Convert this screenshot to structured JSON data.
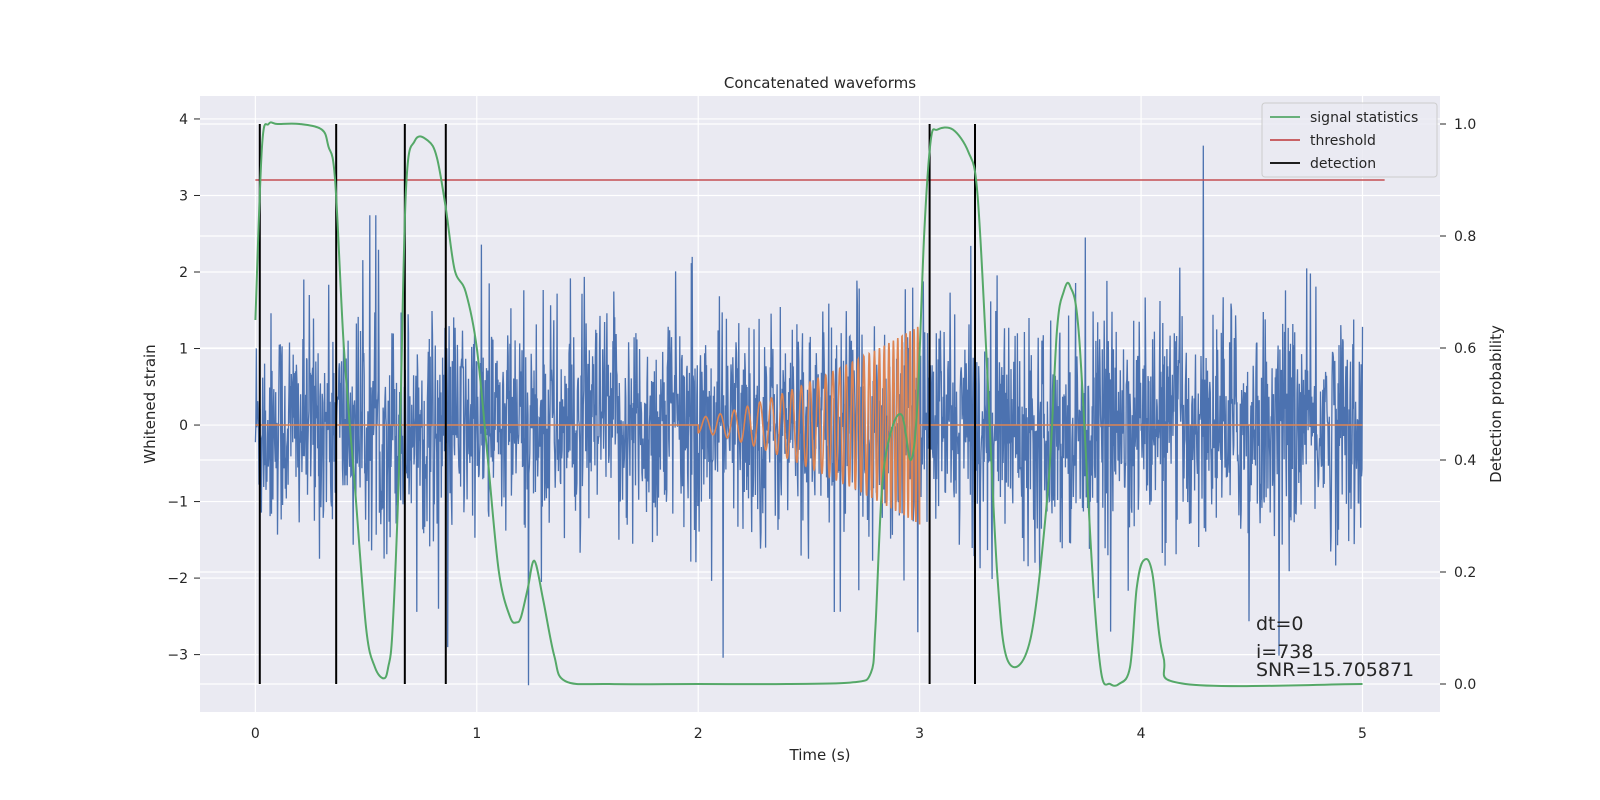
{
  "chart_data": {
    "type": "line",
    "title": "Concatenated waveforms",
    "xlabel": "Time (s)",
    "ylabel": "Whitened strain",
    "y2label": "Detection probability",
    "xlim": [
      -0.25,
      5.35
    ],
    "ylim": [
      -3.75,
      4.3
    ],
    "y2lim": [
      -0.05,
      1.05
    ],
    "xticks": [
      0,
      1,
      2,
      3,
      4,
      5
    ],
    "yticks": [
      -3,
      -2,
      -1,
      0,
      1,
      2,
      3,
      4
    ],
    "y2ticks": [
      0.0,
      0.2,
      0.4,
      0.6,
      0.8,
      1.0
    ],
    "xticklabels": [
      "0",
      "1",
      "2",
      "3",
      "4",
      "5"
    ],
    "yticklabels": [
      "−3",
      "−2",
      "−1",
      "0",
      "1",
      "2",
      "3",
      "4"
    ],
    "y2ticklabels": [
      "0.0",
      "0.2",
      "0.4",
      "0.6",
      "0.8",
      "1.0"
    ],
    "grid": true,
    "legend_position": "top-right",
    "colors": {
      "strain": "#4c72b0",
      "waveform": "#dd8452",
      "signal": "#55a868",
      "threshold": "#c44e52",
      "detection": "#000000",
      "plot_bg": "#eaeaf2",
      "grid": "#ffffff"
    },
    "strain_noise": {
      "x_range": [
        0,
        5
      ],
      "typical_envelope": [
        -1.8,
        1.8
      ],
      "max": 3.95,
      "min": -3.4
    },
    "chirp": {
      "x_range": [
        2.0,
        3.0
      ],
      "amplitude_start": 0.1,
      "amplitude_end": 1.3,
      "freq_start_hz": 15,
      "freq_end_hz": 60
    },
    "series": [
      {
        "name": "signal statistics",
        "axis": "right",
        "x": [
          0,
          0.03,
          0.06,
          0.1,
          0.2,
          0.3,
          0.33,
          0.36,
          0.4,
          0.45,
          0.5,
          0.54,
          0.58,
          0.6,
          0.62,
          0.65,
          0.68,
          0.72,
          0.78,
          0.82,
          0.86,
          0.9,
          0.95,
          1.0,
          1.05,
          1.1,
          1.15,
          1.18,
          1.2,
          1.23,
          1.26,
          1.3,
          1.35,
          1.4,
          1.6,
          2.0,
          2.4,
          2.7,
          2.78,
          2.8,
          2.83,
          2.87,
          2.92,
          2.96,
          2.99,
          3.02,
          3.05,
          3.08,
          3.15,
          3.22,
          3.26,
          3.3,
          3.35,
          3.4,
          3.5,
          3.58,
          3.62,
          3.65,
          3.68,
          3.72,
          3.78,
          3.82,
          3.86,
          3.9,
          3.95,
          3.98,
          4.01,
          4.05,
          4.1,
          4.2,
          5.0
        ],
        "y": [
          0.65,
          0.96,
          1.0,
          1.0,
          1.0,
          0.99,
          0.96,
          0.9,
          0.6,
          0.35,
          0.1,
          0.03,
          0.01,
          0.03,
          0.1,
          0.4,
          0.88,
          0.97,
          0.97,
          0.94,
          0.85,
          0.74,
          0.7,
          0.6,
          0.4,
          0.2,
          0.12,
          0.11,
          0.12,
          0.17,
          0.22,
          0.15,
          0.05,
          0.005,
          0.0,
          0.0,
          0.0,
          0.003,
          0.02,
          0.1,
          0.35,
          0.45,
          0.48,
          0.4,
          0.5,
          0.8,
          0.97,
          0.99,
          0.99,
          0.95,
          0.88,
          0.6,
          0.2,
          0.04,
          0.08,
          0.35,
          0.63,
          0.7,
          0.71,
          0.62,
          0.2,
          0.02,
          0.0,
          0.0,
          0.03,
          0.17,
          0.22,
          0.2,
          0.05,
          0.0,
          0.0
        ]
      },
      {
        "name": "threshold",
        "axis": "right",
        "x": [
          0,
          5.1
        ],
        "y": [
          0.9,
          0.9
        ]
      },
      {
        "name": "detection",
        "axis": "right",
        "x": [
          0.02,
          0.365,
          0.675,
          0.86,
          3.045,
          3.25
        ],
        "y_range": [
          0,
          1
        ]
      }
    ],
    "annotations": [
      "dt=0",
      "i=738",
      "SNR=15.705871"
    ]
  }
}
